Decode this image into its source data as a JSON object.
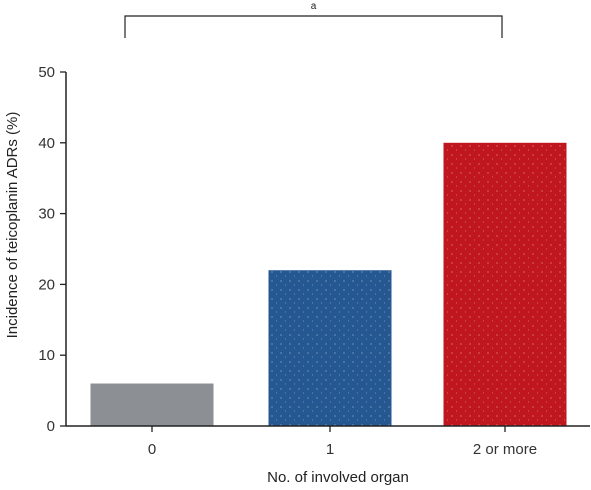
{
  "chart_data": {
    "type": "bar",
    "categories": [
      "0",
      "1",
      "2 or more"
    ],
    "values": [
      6,
      22,
      40
    ],
    "colors": [
      "#8c8f93",
      "#255791",
      "#c0161f"
    ],
    "xlabel": "No. of involved organ",
    "ylabel": "Incidence of teicoplanin ADRs (%)",
    "ylim": [
      0,
      50
    ],
    "yticks": [
      0,
      10,
      20,
      30,
      40,
      50
    ],
    "grid": false,
    "significance": {
      "label": "a",
      "from_category": "0",
      "to_category": "2 or more"
    }
  }
}
